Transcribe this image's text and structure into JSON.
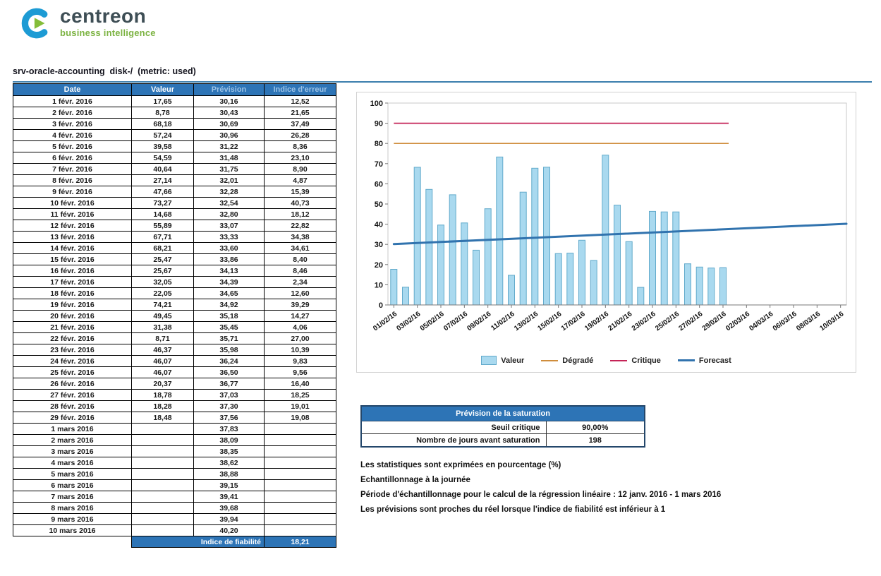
{
  "logo": {
    "brand": "centreon",
    "tagline": "business intelligence"
  },
  "report": {
    "title": "srv-oracle-accounting  disk-/  (metric: used)"
  },
  "colors": {
    "header_bg": "#2d74b6",
    "header_text": "#ffffff",
    "header_text_light": "#9dc3e6",
    "title_rule": "#3c7fae",
    "bar": "#a9d9ef",
    "bar_border": "#62aacb",
    "degraded": "#cf8d3c",
    "critical": "#c52457",
    "forecast": "#3173ae"
  },
  "forecast_table": {
    "headers": [
      "Date",
      "Valeur",
      "Prévision",
      "Indice d'erreur"
    ],
    "rows": [
      [
        "1 févr. 2016",
        "17,65",
        "30,16",
        "12,52"
      ],
      [
        "2 févr. 2016",
        "8,78",
        "30,43",
        "21,65"
      ],
      [
        "3 févr. 2016",
        "68,18",
        "30,69",
        "37,49"
      ],
      [
        "4 févr. 2016",
        "57,24",
        "30,96",
        "26,28"
      ],
      [
        "5 févr. 2016",
        "39,58",
        "31,22",
        "8,36"
      ],
      [
        "6 févr. 2016",
        "54,59",
        "31,48",
        "23,10"
      ],
      [
        "7 févr. 2016",
        "40,64",
        "31,75",
        "8,90"
      ],
      [
        "8 févr. 2016",
        "27,14",
        "32,01",
        "4,87"
      ],
      [
        "9 févr. 2016",
        "47,66",
        "32,28",
        "15,39"
      ],
      [
        "10 févr. 2016",
        "73,27",
        "32,54",
        "40,73"
      ],
      [
        "11 févr. 2016",
        "14,68",
        "32,80",
        "18,12"
      ],
      [
        "12 févr. 2016",
        "55,89",
        "33,07",
        "22,82"
      ],
      [
        "13 févr. 2016",
        "67,71",
        "33,33",
        "34,38"
      ],
      [
        "14 févr. 2016",
        "68,21",
        "33,60",
        "34,61"
      ],
      [
        "15 févr. 2016",
        "25,47",
        "33,86",
        "8,40"
      ],
      [
        "16 févr. 2016",
        "25,67",
        "34,13",
        "8,46"
      ],
      [
        "17 févr. 2016",
        "32,05",
        "34,39",
        "2,34"
      ],
      [
        "18 févr. 2016",
        "22,05",
        "34,65",
        "12,60"
      ],
      [
        "19 févr. 2016",
        "74,21",
        "34,92",
        "39,29"
      ],
      [
        "20 févr. 2016",
        "49,45",
        "35,18",
        "14,27"
      ],
      [
        "21 févr. 2016",
        "31,38",
        "35,45",
        "4,06"
      ],
      [
        "22 févr. 2016",
        "8,71",
        "35,71",
        "27,00"
      ],
      [
        "23 févr. 2016",
        "46,37",
        "35,98",
        "10,39"
      ],
      [
        "24 févr. 2016",
        "46,07",
        "36,24",
        "9,83"
      ],
      [
        "25 févr. 2016",
        "46,07",
        "36,50",
        "9,56"
      ],
      [
        "26 févr. 2016",
        "20,37",
        "36,77",
        "16,40"
      ],
      [
        "27 févr. 2016",
        "18,78",
        "37,03",
        "18,25"
      ],
      [
        "28 févr. 2016",
        "18,28",
        "37,30",
        "19,01"
      ],
      [
        "29 févr. 2016",
        "18,48",
        "37,56",
        "19,08"
      ],
      [
        "1 mars 2016",
        "",
        "37,83",
        ""
      ],
      [
        "2 mars 2016",
        "",
        "38,09",
        ""
      ],
      [
        "3 mars 2016",
        "",
        "38,35",
        ""
      ],
      [
        "4 mars 2016",
        "",
        "38,62",
        ""
      ],
      [
        "5 mars 2016",
        "",
        "38,88",
        ""
      ],
      [
        "6 mars 2016",
        "",
        "39,15",
        ""
      ],
      [
        "7 mars 2016",
        "",
        "39,41",
        ""
      ],
      [
        "8 mars 2016",
        "",
        "39,68",
        ""
      ],
      [
        "9 mars 2016",
        "",
        "39,94",
        ""
      ],
      [
        "10 mars 2016",
        "",
        "40,20",
        ""
      ]
    ],
    "footer": {
      "label": "Indice de fiabilité",
      "value": "18,21"
    }
  },
  "chart_data": {
    "type": "bar",
    "title": "",
    "xlabel": "",
    "ylabel": "",
    "ylim": [
      0,
      100
    ],
    "y_ticks": [
      0,
      10,
      20,
      30,
      40,
      50,
      60,
      70,
      80,
      90,
      100
    ],
    "n_slots": 39,
    "x_ticklabels": [
      "01/02/16",
      "03/02/16",
      "05/02/16",
      "07/02/16",
      "09/02/16",
      "11/02/16",
      "13/02/16",
      "15/02/16",
      "17/02/16",
      "19/02/16",
      "21/02/16",
      "23/02/16",
      "25/02/16",
      "27/02/16",
      "29/02/16",
      "02/03/16",
      "04/03/16",
      "06/03/16",
      "08/03/16",
      "10/03/16"
    ],
    "values": [
      17.65,
      8.78,
      68.18,
      57.24,
      39.58,
      54.59,
      40.64,
      27.14,
      47.66,
      73.27,
      14.68,
      55.89,
      67.71,
      68.21,
      25.47,
      25.67,
      32.05,
      22.05,
      74.21,
      49.45,
      31.38,
      8.71,
      46.37,
      46.07,
      46.07,
      20.37,
      18.78,
      18.28,
      18.48
    ],
    "degraded_value": 80,
    "critical_value": 90,
    "forecast_start": 30.16,
    "forecast_end": 40.2,
    "grid": false,
    "legend_position": "bottom",
    "legend": [
      {
        "key": "valeur",
        "label": "Valeur",
        "type": "box",
        "color": "#a9d9ef"
      },
      {
        "key": "degrade",
        "label": "Dégradé",
        "type": "line",
        "color": "#cf8d3c"
      },
      {
        "key": "critique",
        "label": "Critique",
        "type": "line",
        "color": "#c52457"
      },
      {
        "key": "forecast",
        "label": "Forecast",
        "type": "thick",
        "color": "#3173ae"
      }
    ]
  },
  "saturation": {
    "title": "Prévision de la saturation",
    "rows": [
      [
        "Seuil critique",
        "90,00%"
      ],
      [
        "Nombre de jours avant saturation",
        "198"
      ]
    ]
  },
  "notes": [
    "Les statistiques sont exprimées en pourcentage (%)",
    "Echantillonnage à la journée",
    "Période d'échantillonnage pour le calcul de la régression linéaire : 12 janv. 2016 - 1 mars 2016",
    "Les prévisions sont proches du réel lorsque l'indice de fiabilité est inférieur à 1"
  ]
}
